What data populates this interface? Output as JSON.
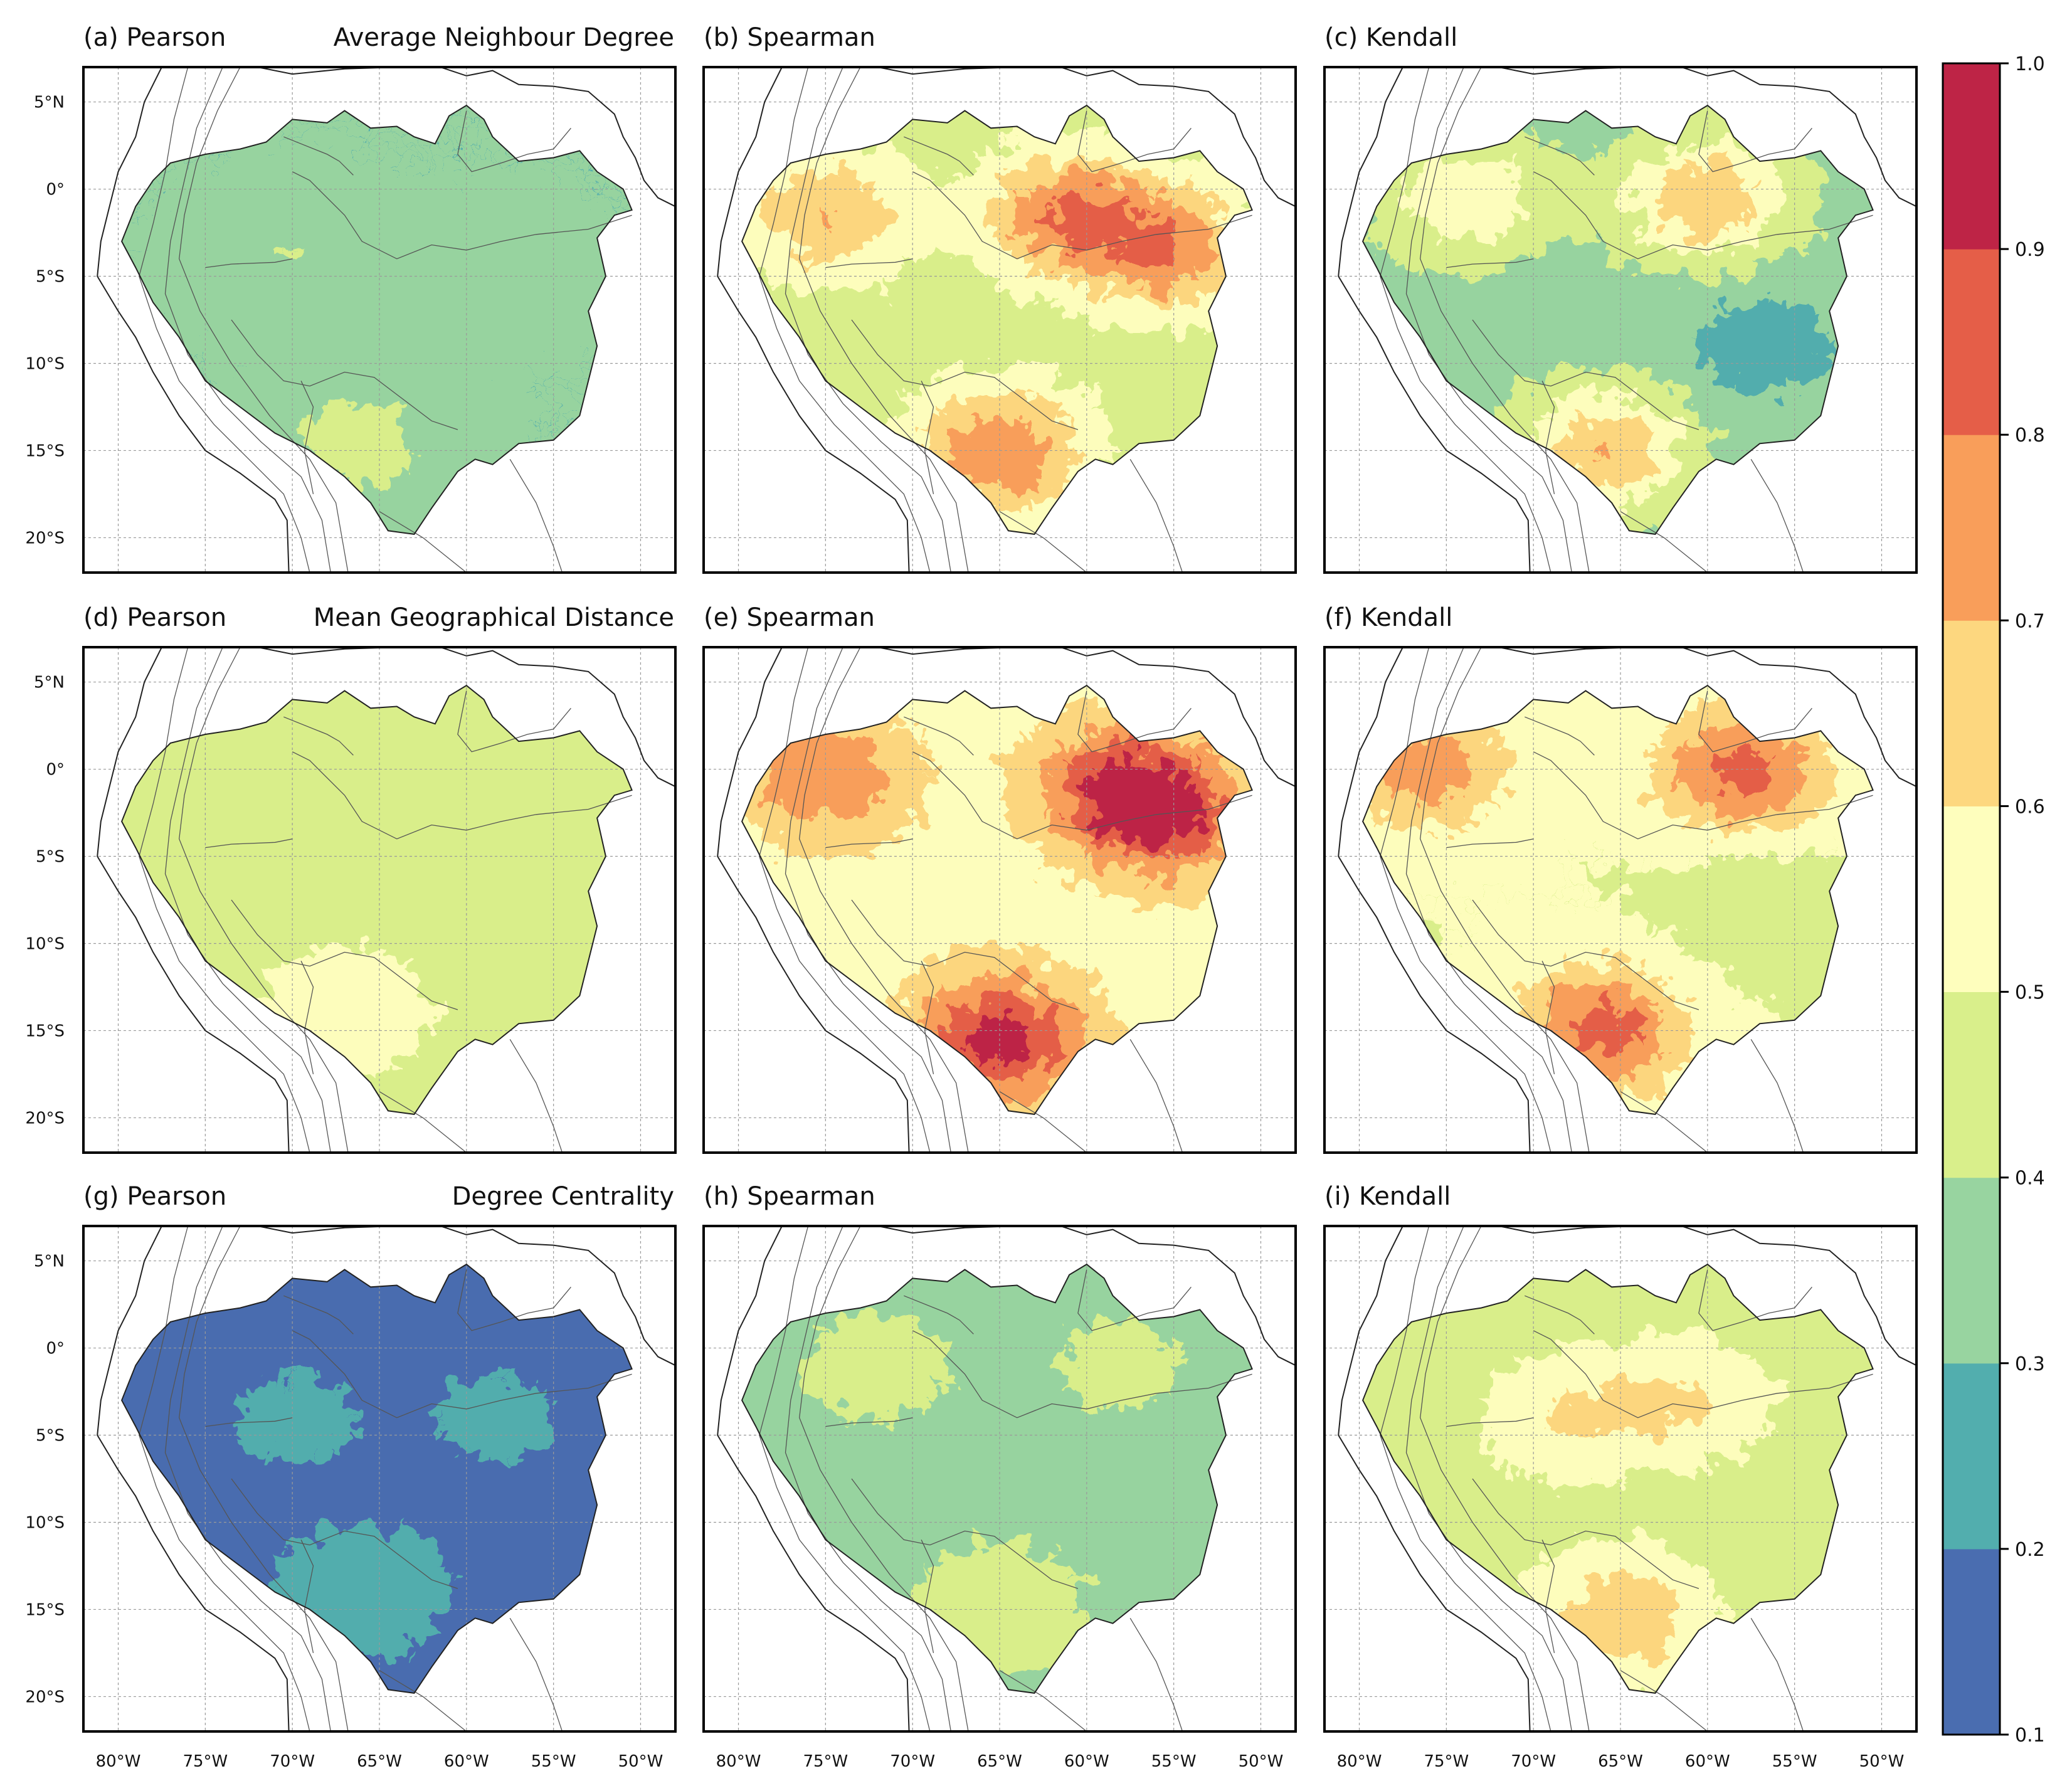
{
  "chart_data": {
    "type": "contour-map",
    "colormap": "Spectral_r",
    "levels": [
      0.1,
      0.2,
      0.3,
      0.4,
      0.5,
      0.6,
      0.7,
      0.8,
      0.9,
      1.0
    ],
    "level_colors": [
      "#4a6db0",
      "#52aeae",
      "#98d4a0",
      "#d9ef8b",
      "#fefebd",
      "#fdd77f",
      "#f99e5a",
      "#e55e48",
      "#be2446"
    ],
    "colorbar_ticks": [
      "0.1",
      "0.2",
      "0.3",
      "0.4",
      "0.5",
      "0.6",
      "0.7",
      "0.8",
      "0.9",
      "1.0"
    ],
    "lon_ticks": [
      "80°W",
      "75°W",
      "70°W",
      "65°W",
      "60°W",
      "55°W",
      "50°W"
    ],
    "lat_ticks": [
      "5°N",
      "0°",
      "5°S",
      "10°S",
      "15°S",
      "20°S"
    ],
    "extent": {
      "lon": [
        -82,
        -48
      ],
      "lat": [
        -22,
        7
      ]
    },
    "rows": [
      {
        "metric": "Average Neighbour Degree",
        "panels": [
          {
            "label": "(a) Pearson",
            "base": 0.3,
            "hotspots": [
              {
                "lon": -66,
                "lat": -14.5,
                "v": 0.15
              },
              {
                "lon": -70,
                "lat": -4,
                "v": 0.1
              },
              {
                "lon": -58,
                "lat": -5,
                "v": 0.05
              }
            ]
          },
          {
            "label": "(b) Spearman",
            "base": 0.45,
            "hotspots": [
              {
                "lon": -61,
                "lat": -1.5,
                "v": 0.35
              },
              {
                "lon": -65,
                "lat": -15,
                "v": 0.35
              },
              {
                "lon": -75,
                "lat": -1.5,
                "v": 0.25
              },
              {
                "lon": -55,
                "lat": -3.5,
                "v": 0.3
              }
            ]
          },
          {
            "label": "(c) Kendall",
            "base": 0.35,
            "hotspots": [
              {
                "lon": -60,
                "lat": -0.5,
                "v": 0.35
              },
              {
                "lon": -66,
                "lat": -15,
                "v": 0.35
              },
              {
                "lon": -74,
                "lat": -0.5,
                "v": 0.25
              },
              {
                "lon": -57,
                "lat": -9,
                "v": -0.1
              }
            ]
          }
        ]
      },
      {
        "metric": "Mean Geographical Distance",
        "panels": [
          {
            "label": "(d) Pearson",
            "base": 0.45,
            "hotspots": [
              {
                "lon": -67,
                "lat": -14,
                "v": 0.15
              },
              {
                "lon": -62,
                "lat": -5,
                "v": 0.05
              }
            ]
          },
          {
            "label": "(e) Spearman",
            "base": 0.55,
            "hotspots": [
              {
                "lon": -58,
                "lat": -1,
                "v": 0.35
              },
              {
                "lon": -65,
                "lat": -15.5,
                "v": 0.4
              },
              {
                "lon": -75,
                "lat": -0.5,
                "v": 0.25
              },
              {
                "lon": -55,
                "lat": -3,
                "v": 0.25
              }
            ]
          },
          {
            "label": "(f) Kendall",
            "base": 0.5,
            "hotspots": [
              {
                "lon": -58,
                "lat": 0,
                "v": 0.35
              },
              {
                "lon": -66,
                "lat": -15,
                "v": 0.35
              },
              {
                "lon": -76,
                "lat": 0,
                "v": 0.25
              },
              {
                "lon": -57,
                "lat": -8,
                "v": -0.08
              }
            ]
          }
        ]
      },
      {
        "metric": "Degree Centrality",
        "panels": [
          {
            "label": "(g) Pearson",
            "base": 0.17,
            "hotspots": [
              {
                "lon": -66,
                "lat": -14,
                "v": 0.1
              },
              {
                "lon": -70,
                "lat": -4,
                "v": 0.05
              },
              {
                "lon": -58,
                "lat": -4,
                "v": 0.05
              }
            ]
          },
          {
            "label": "(h) Spearman",
            "base": 0.35,
            "hotspots": [
              {
                "lon": -65,
                "lat": -15,
                "v": 0.15
              },
              {
                "lon": -72,
                "lat": -1,
                "v": 0.1
              },
              {
                "lon": -58,
                "lat": -1,
                "v": 0.08
              }
            ]
          },
          {
            "label": "(i) Kendall",
            "base": 0.45,
            "hotspots": [
              {
                "lon": -65,
                "lat": -15.5,
                "v": 0.25
              },
              {
                "lon": -68,
                "lat": -4,
                "v": 0.15
              },
              {
                "lon": -61,
                "lat": -3,
                "v": 0.15
              }
            ]
          }
        ]
      }
    ]
  }
}
